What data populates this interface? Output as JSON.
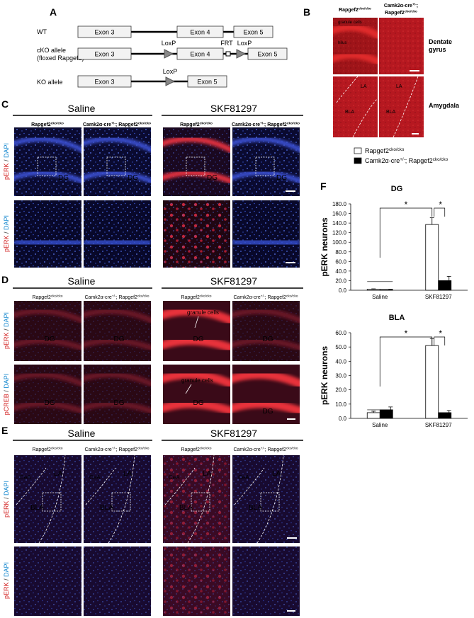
{
  "panel_labels": [
    "A",
    "B",
    "C",
    "D",
    "E",
    "F"
  ],
  "construct": {
    "rows": [
      "WT",
      "cKO allele",
      "(floxed Rapgef2)",
      "KO allele"
    ],
    "exons": [
      "Exon 3",
      "Exon 4",
      "Exon 5"
    ],
    "loxp": "LoxP",
    "frt": "FRT"
  },
  "genotypes": {
    "control": [
      {
        "t": "Rapgef2"
      },
      {
        "sup": "cko/cko"
      }
    ],
    "mutant": [
      {
        "t": "Camk2α-cre"
      },
      {
        "sup": "+/-"
      },
      {
        "t": "; "
      },
      {
        "t": "Rapgef2"
      },
      {
        "sup": "cko/cko"
      }
    ]
  },
  "conditions": [
    "Saline",
    "SKF81297"
  ],
  "stains": {
    "perk": "pERK",
    "pcreb": "pCREB",
    "dapi": "DAPI",
    "sep": " / "
  },
  "regions": {
    "dentate_gyrus": [
      "Dentate",
      "gyrus"
    ],
    "amygdala": "Amygdala",
    "dg": "DG",
    "granule": "granule cells",
    "hilus": "hilus",
    "cea": "CeA",
    "la": "LA",
    "bla": "BLA"
  },
  "chart_data": [
    {
      "type": "bar",
      "title": "DG",
      "y_label": "pERK neurons",
      "categories": [
        "Saline",
        "SKF81297"
      ],
      "series": [
        {
          "name": [
            {
              "t": "Rapgef2"
            },
            {
              "sup": "cko/cko"
            }
          ],
          "color": "#ffffff",
          "values": [
            2,
            137
          ],
          "errors": [
            1,
            14
          ]
        },
        {
          "name": [
            {
              "t": "Camk2α-cre"
            },
            {
              "sup": "+/-"
            },
            {
              "t": "; Rapgef2"
            },
            {
              "sup": "cko/cko"
            }
          ],
          "color": "#000000",
          "values": [
            1.5,
            20
          ],
          "errors": [
            0.5,
            9
          ]
        }
      ],
      "ylim": [
        0,
        180
      ],
      "yticks": [
        {
          "value": 0,
          "label": "0.0"
        },
        {
          "value": 20,
          "label": "20.0"
        },
        {
          "value": 40,
          "label": "40.0"
        },
        {
          "value": 60,
          "label": "60.0"
        },
        {
          "value": 80,
          "label": "80.0"
        },
        {
          "value": 100,
          "label": "100.0"
        },
        {
          "value": 120,
          "label": "120.0"
        },
        {
          "value": 140,
          "label": "140.0"
        },
        {
          "value": 160,
          "label": "160.0"
        },
        {
          "value": 180,
          "label": "180.0"
        }
      ],
      "annotations": [
        "*",
        "*"
      ]
    },
    {
      "type": "bar",
      "title": "BLA",
      "y_label": "pERK neurons",
      "categories": [
        "Saline",
        "SKF81297"
      ],
      "series": [
        {
          "color": "#ffffff",
          "values": [
            4,
            51
          ],
          "errors": [
            1,
            5
          ]
        },
        {
          "color": "#000000",
          "values": [
            6,
            4
          ],
          "errors": [
            2,
            1.5
          ]
        }
      ],
      "ylim": [
        0,
        60
      ],
      "yticks": [
        {
          "value": 0,
          "label": "0.0"
        },
        {
          "value": 10,
          "label": "10.0"
        },
        {
          "value": 20,
          "label": "20.0"
        },
        {
          "value": 30,
          "label": "30.0"
        },
        {
          "value": 40,
          "label": "40.0"
        },
        {
          "value": 50,
          "label": "50.0"
        },
        {
          "value": 60,
          "label": "60.0"
        }
      ],
      "annotations": [
        "*",
        "*"
      ]
    }
  ]
}
